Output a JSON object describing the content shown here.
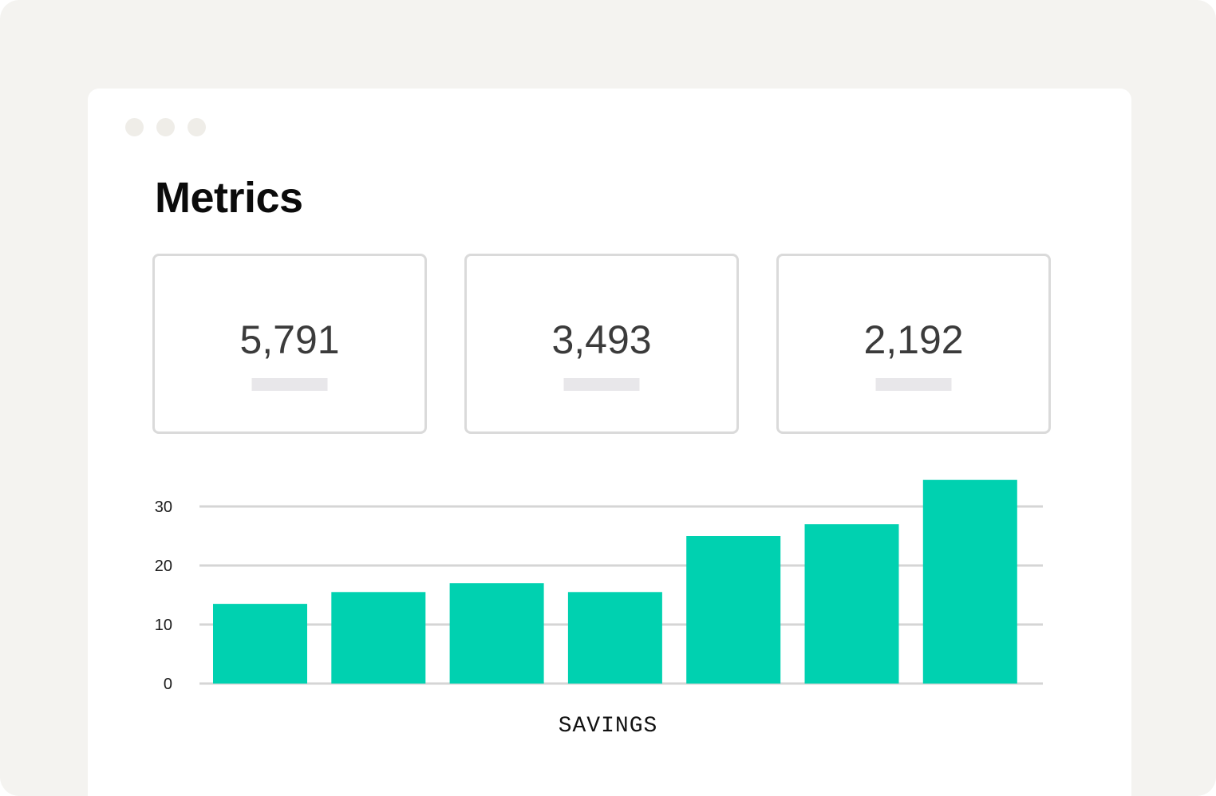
{
  "page": {
    "title": "Metrics"
  },
  "window": {
    "controls": [
      "dot",
      "dot",
      "dot"
    ]
  },
  "cards": [
    {
      "value": "5,791"
    },
    {
      "value": "3,493"
    },
    {
      "value": "2,192"
    }
  ],
  "colors": {
    "bar": "#00d1b0",
    "grid": "#d5d5d5",
    "background": "#f4f3f0"
  },
  "chart_data": {
    "type": "bar",
    "categories": [
      "",
      "",
      "",
      "",
      "",
      "",
      ""
    ],
    "values": [
      13.5,
      15.5,
      17,
      15.5,
      25,
      27,
      34.5
    ],
    "title": "",
    "xlabel": "SAVINGS",
    "ylabel": "",
    "yticks": [
      0,
      10,
      20,
      30
    ],
    "ylim": [
      0,
      34.5
    ],
    "grid": true
  }
}
